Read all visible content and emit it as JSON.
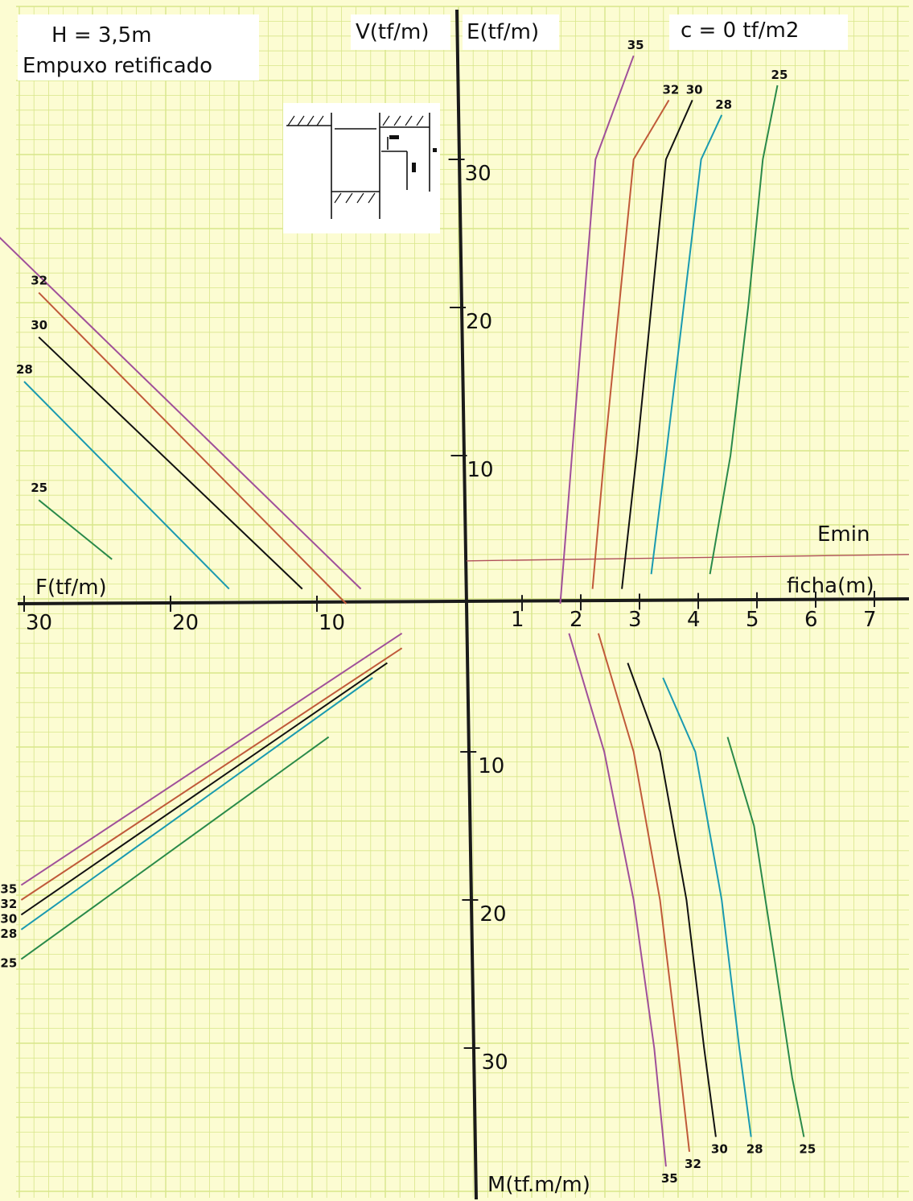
{
  "texts": {
    "h": "H  =  3,5m",
    "empuxo": "Empuxo  retificado",
    "c": "c  =  0  tf/m2",
    "v_axis": "V(tf/m)",
    "e_axis": "E(tf/m)",
    "f_axis": "F(tf/m)",
    "ficha_axis": "ficha(m)",
    "m_axis": "M(tf.m/m)",
    "emin": "Emin"
  },
  "colors": {
    "background": "#fcfcd2",
    "grid": "#d8e68a",
    "axis": "#1a1a1a",
    "emin": "#b0505a",
    "phi35": "#a0509a",
    "phi32": "#c05a3a",
    "phi30": "#111111",
    "phi28": "#1a9ab0",
    "phi25": "#2a8a4a"
  },
  "chart_data": {
    "type": "line",
    "axes": {
      "ficha_ticks": [
        "1",
        "2",
        "3",
        "4",
        "5",
        "6",
        "7"
      ],
      "f_ticks": [
        "10",
        "20",
        "30"
      ],
      "e_ticks": [
        "10",
        "20",
        "30"
      ],
      "m_ticks": [
        "10",
        "20",
        "30"
      ]
    },
    "emin_value": 3,
    "quadrants": {
      "E_vs_ficha": {
        "x_unit": "ficha(m)",
        "y_unit": "E(tf/m)",
        "series": [
          {
            "name": "35",
            "points": [
              [
                1.65,
                0
              ],
              [
                1.85,
                10
              ],
              [
                2.05,
                20
              ],
              [
                2.25,
                30
              ],
              [
                2.9,
                37
              ]
            ]
          },
          {
            "name": "32",
            "points": [
              [
                2.2,
                1
              ],
              [
                2.4,
                10
              ],
              [
                2.65,
                20
              ],
              [
                2.9,
                30
              ],
              [
                3.5,
                34
              ]
            ]
          },
          {
            "name": "30",
            "points": [
              [
                2.7,
                1
              ],
              [
                2.95,
                10
              ],
              [
                3.2,
                20
              ],
              [
                3.45,
                30
              ],
              [
                3.9,
                34
              ]
            ]
          },
          {
            "name": "28",
            "points": [
              [
                3.2,
                2
              ],
              [
                3.45,
                10
              ],
              [
                3.75,
                20
              ],
              [
                4.05,
                30
              ],
              [
                4.4,
                33
              ]
            ]
          },
          {
            "name": "25",
            "points": [
              [
                4.2,
                2
              ],
              [
                4.55,
                10
              ],
              [
                4.85,
                20
              ],
              [
                5.1,
                30
              ],
              [
                5.35,
                35
              ]
            ]
          }
        ]
      },
      "F_vs_V": {
        "x_unit": "F(tf/m)",
        "y_unit": "V(tf/m)",
        "series": [
          {
            "name": "35",
            "points": [
              [
                7,
                1
              ],
              [
                33,
                26
              ]
            ]
          },
          {
            "name": "32",
            "points": [
              [
                8,
                0
              ],
              [
                29,
                21
              ]
            ]
          },
          {
            "name": "30",
            "points": [
              [
                11,
                1
              ],
              [
                29,
                18
              ]
            ]
          },
          {
            "name": "28",
            "points": [
              [
                16,
                1
              ],
              [
                30,
                15
              ]
            ]
          },
          {
            "name": "25",
            "points": [
              [
                24,
                3
              ],
              [
                29,
                7
              ]
            ]
          }
        ]
      },
      "V_vs_M": {
        "x_unit": "V(tf/m)",
        "y_unit": "M(tf.m/m)",
        "series": [
          {
            "name": "35",
            "points": [
              [
                2,
                2
              ],
              [
                28,
                19
              ]
            ]
          },
          {
            "name": "32",
            "points": [
              [
                2,
                3
              ],
              [
                28,
                20
              ]
            ]
          },
          {
            "name": "30",
            "points": [
              [
                3,
                4
              ],
              [
                28,
                21
              ]
            ]
          },
          {
            "name": "28",
            "points": [
              [
                4,
                5
              ],
              [
                28,
                22
              ]
            ]
          },
          {
            "name": "25",
            "points": [
              [
                7,
                9
              ],
              [
                28,
                24
              ]
            ]
          }
        ]
      },
      "ficha_vs_M": {
        "x_unit": "ficha(m)",
        "y_unit": "M(tf.m/m)",
        "series": [
          {
            "name": "35",
            "points": [
              [
                1.8,
                2
              ],
              [
                2.4,
                10
              ],
              [
                2.9,
                20
              ],
              [
                3.25,
                30
              ],
              [
                3.45,
                38
              ]
            ]
          },
          {
            "name": "32",
            "points": [
              [
                2.3,
                2
              ],
              [
                2.9,
                10
              ],
              [
                3.35,
                20
              ],
              [
                3.65,
                30
              ],
              [
                3.85,
                37
              ]
            ]
          },
          {
            "name": "30",
            "points": [
              [
                2.8,
                4
              ],
              [
                3.35,
                10
              ],
              [
                3.8,
                20
              ],
              [
                4.1,
                30
              ],
              [
                4.3,
                36
              ]
            ]
          },
          {
            "name": "28",
            "points": [
              [
                3.4,
                5
              ],
              [
                3.95,
                10
              ],
              [
                4.4,
                20
              ],
              [
                4.7,
                30
              ],
              [
                4.9,
                36
              ]
            ]
          },
          {
            "name": "25",
            "points": [
              [
                4.5,
                9
              ],
              [
                4.95,
                15
              ],
              [
                5.3,
                24
              ],
              [
                5.6,
                32
              ],
              [
                5.8,
                36
              ]
            ]
          }
        ]
      }
    }
  }
}
